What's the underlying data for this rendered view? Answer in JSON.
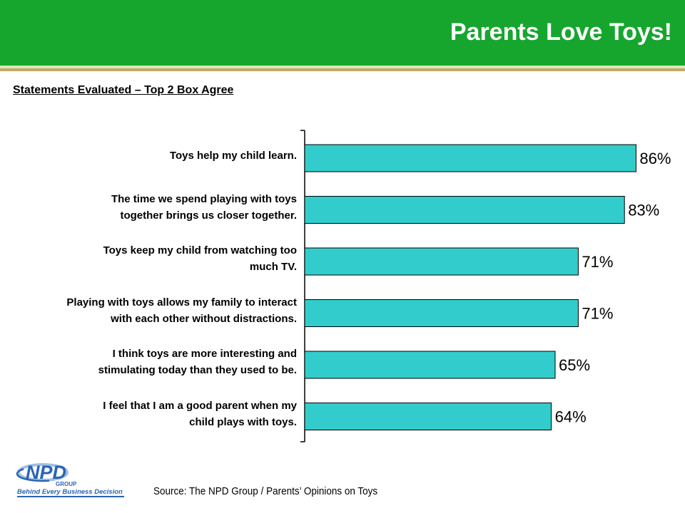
{
  "header": {
    "title": "Parents Love Toys!"
  },
  "section_heading": "Statements Evaluated – Top 2 Box Agree",
  "source": "Source:  The NPD Group / Parents’ Opinions on Toys",
  "logo": {
    "name": "NPD",
    "sub": "GROUP",
    "tagline": "Behind Every Business Decision"
  },
  "colors": {
    "header_green": "#16a62e",
    "bar_fill": "#33cccc",
    "bar_stroke": "#000000",
    "logo_blue": "#2a64b4"
  },
  "chart_data": {
    "type": "bar",
    "orientation": "horizontal",
    "title": "Statements Evaluated – Top 2 Box Agree",
    "unit": "%",
    "xlim": [
      0,
      100
    ],
    "grid": false,
    "categories": [
      "Toys help my child learn.",
      "The time we spend playing with toys together brings us closer together.",
      "Toys keep my child from watching too much TV.",
      "Playing with toys allows my family to interact with each other without distractions.",
      "I think toys are more interesting and stimulating today than they used to be.",
      "I feel that I am a good parent when my child plays with toys."
    ],
    "label_lines": [
      [
        "Toys help my child learn."
      ],
      [
        "The time we spend playing with toys",
        "together brings us closer together."
      ],
      [
        "Toys keep my child from watching too",
        "much TV."
      ],
      [
        "Playing with toys allows my family to interact",
        "with each other without distractions."
      ],
      [
        "I think toys are more interesting and",
        "stimulating today than they used to be."
      ],
      [
        "I feel that I am a good parent when my",
        "child plays with toys."
      ]
    ],
    "values": [
      86,
      83,
      71,
      71,
      65,
      64
    ],
    "data_labels": [
      "86%",
      "83%",
      "71%",
      "71%",
      "65%",
      "64%"
    ]
  }
}
